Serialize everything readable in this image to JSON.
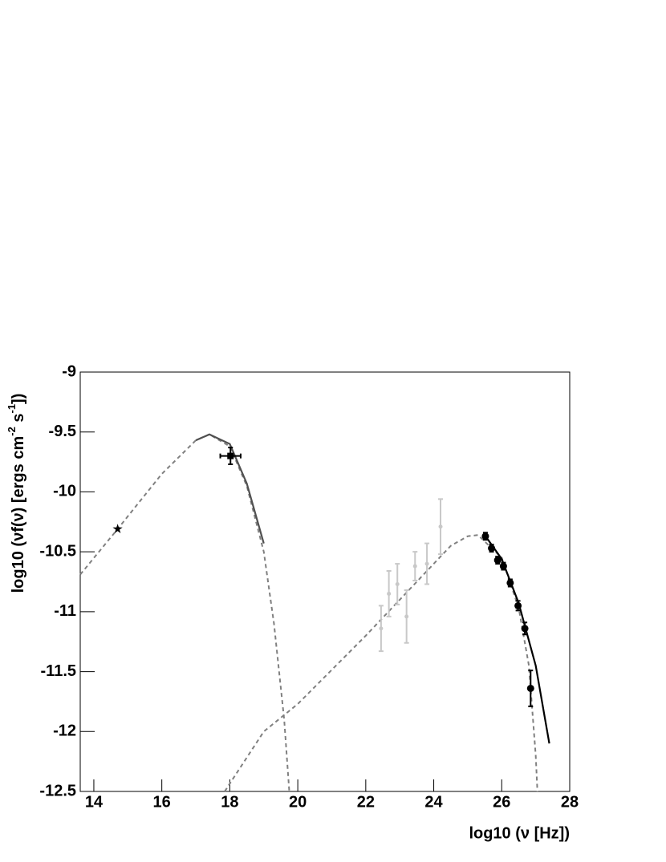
{
  "chart_data": {
    "type": "sed",
    "xlabel": "log10 (ν [Hz])",
    "ylabel_parts": [
      "log10 (νf(ν) [ergs cm",
      "-2",
      " s",
      "-1",
      "])"
    ],
    "xlim": [
      13.6,
      28
    ],
    "ylim": [
      -12.5,
      -9
    ],
    "xticks": [
      14,
      16,
      18,
      20,
      22,
      24,
      26,
      28
    ],
    "yticks": [
      -9,
      -9.5,
      -10,
      -10.5,
      -11,
      -11.5,
      -12,
      -12.5
    ],
    "grid": false,
    "curves": [
      {
        "color": "#808080",
        "dashed": true,
        "x": [
          13.6,
          14.7,
          16,
          17,
          17.4,
          18,
          18.5,
          19,
          19.3,
          19.6,
          19.75
        ],
        "values": [
          -10.69,
          -10.31,
          -9.85,
          -9.57,
          -9.52,
          -9.62,
          -9.95,
          -10.5,
          -11.1,
          -11.9,
          -12.5
        ]
      },
      {
        "color": "#808080",
        "dashed": true,
        "x": [
          17.85,
          19,
          20,
          22,
          23,
          24,
          24.5,
          25,
          25.3,
          26,
          26.5,
          26.8,
          27.0,
          27.05
        ],
        "values": [
          -12.5,
          -12.0,
          -11.77,
          -11.2,
          -10.9,
          -10.6,
          -10.45,
          -10.37,
          -10.36,
          -10.55,
          -10.97,
          -11.45,
          -12.2,
          -12.5
        ]
      },
      {
        "color": "#505050",
        "dashed": false,
        "x": [
          17,
          17.4,
          18,
          18.5,
          19
        ],
        "values": [
          -9.57,
          -9.52,
          -9.6,
          -9.93,
          -10.43
        ]
      },
      {
        "color": "#000000",
        "dashed": false,
        "x": [
          25.5,
          26,
          26.5,
          27,
          27.4
        ],
        "values": [
          -10.36,
          -10.56,
          -10.93,
          -11.45,
          -12.1
        ]
      }
    ],
    "points": [
      {
        "marker": "star",
        "color": "#000000",
        "x": [
          14.7
        ],
        "values": [
          -10.31
        ]
      },
      {
        "marker": "square",
        "color": "#000000",
        "x": [
          18.02
        ],
        "values": [
          -9.7
        ],
        "xerr": [
          0.3
        ],
        "yerr": [
          0.07
        ]
      },
      {
        "marker": "circle-small",
        "color": "#c8c8c8",
        "x": [
          22.45,
          22.68,
          22.93,
          23.2,
          23.45,
          23.8,
          24.2
        ],
        "values": [
          -11.14,
          -10.85,
          -10.77,
          -11.04,
          -10.62,
          -10.6,
          -10.29
        ],
        "yerr": [
          0.19,
          0.19,
          0.17,
          0.22,
          0.12,
          0.17,
          0.23
        ]
      },
      {
        "marker": "circle",
        "color": "#000000",
        "x": [
          25.52,
          25.7,
          25.88,
          26.05,
          26.25,
          26.48,
          26.68,
          26.85
        ],
        "values": [
          -10.37,
          -10.47,
          -10.57,
          -10.62,
          -10.76,
          -10.95,
          -11.14,
          -11.64
        ],
        "yerr": [
          0.03,
          0.03,
          0.03,
          0.03,
          0.03,
          0.04,
          0.05,
          0.15
        ]
      }
    ]
  }
}
